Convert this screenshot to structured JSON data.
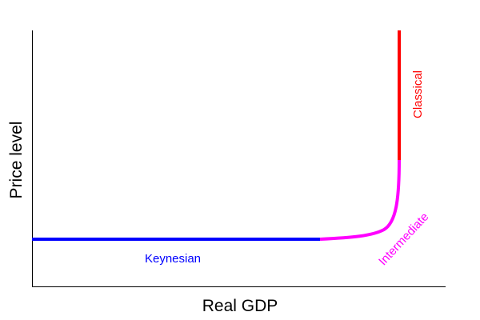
{
  "axes": {
    "xlabel": "Real GDP",
    "ylabel": "Price level"
  },
  "segments": [
    {
      "name": "Keynesian",
      "color": "#0000ff"
    },
    {
      "name": "Intermediate",
      "color": "#ff00ff"
    },
    {
      "name": "Classical",
      "color": "#ff0000"
    }
  ]
}
